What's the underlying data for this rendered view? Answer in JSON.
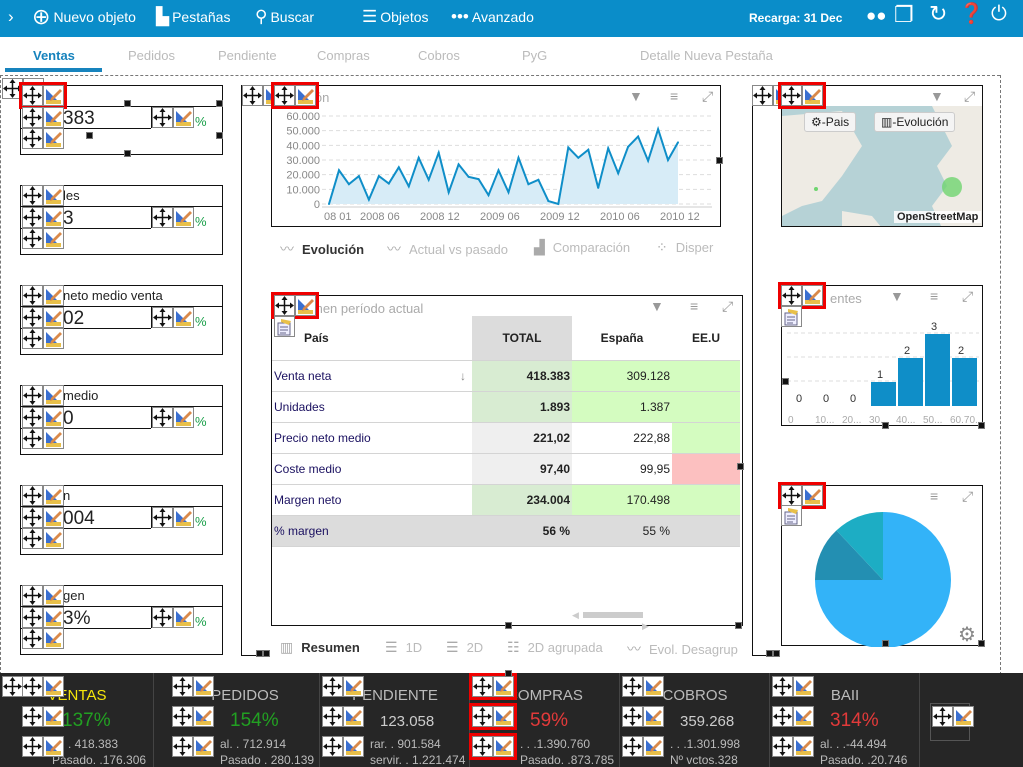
{
  "topbar": {
    "nuevo": "Nuevo objeto",
    "pestanas": "Pestañas",
    "buscar": "Buscar",
    "objetos": "Objetos",
    "avanzado": "Avanzado",
    "recarga": "Recarga: 31 Dec"
  },
  "tabs": [
    "Ventas",
    "Pedidos",
    "Pendiente",
    "Compras",
    "Cobros",
    "PyG",
    "Detalle",
    "Nueva Pestaña"
  ],
  "left_kpis": [
    {
      "title": "",
      "value": "383",
      "pct": "%"
    },
    {
      "title": "les",
      "value": "3",
      "pct": "%"
    },
    {
      "title": "neto medio venta",
      "value": "02",
      "pct": "%"
    },
    {
      "title": "medio",
      "value": "0",
      "pct": "%"
    },
    {
      "title": "n",
      "value": "004",
      "pct": "%"
    },
    {
      "title": "gen",
      "value": "3%",
      "pct": "%"
    }
  ],
  "evolution": {
    "title": "ión",
    "y_ticks": [
      "60.000",
      "50.000",
      "40.000",
      "30.000",
      "20.000",
      "10.000",
      "0"
    ],
    "x_ticks": [
      "08 01",
      "2008 06",
      "2008 12",
      "2009 06",
      "2009 12",
      "2010 06",
      "2010 12"
    ]
  },
  "chart_data": {
    "type": "area",
    "title": "Evolución",
    "x": [
      "2008-01",
      "2008-02",
      "2008-03",
      "2008-04",
      "2008-05",
      "2008-06",
      "2008-07",
      "2008-08",
      "2008-09",
      "2008-10",
      "2008-11",
      "2008-12",
      "2009-01",
      "2009-02",
      "2009-03",
      "2009-04",
      "2009-05",
      "2009-06",
      "2009-07",
      "2009-08",
      "2009-09",
      "2009-10",
      "2009-11",
      "2009-12",
      "2010-01",
      "2010-02",
      "2010-03",
      "2010-04",
      "2010-05",
      "2010-06",
      "2010-07",
      "2010-08",
      "2010-09",
      "2010-10",
      "2010-11",
      "2010-12"
    ],
    "values": [
      0,
      23000,
      13500,
      19000,
      3000,
      19000,
      14000,
      25000,
      12000,
      31500,
      16500,
      35000,
      8000,
      27000,
      18500,
      17000,
      6000,
      23000,
      8000,
      31500,
      13500,
      16500,
      2000,
      -1000,
      38500,
      31500,
      37000,
      11000,
      38000,
      21000,
      39000,
      46000,
      29500,
      51000,
      30000,
      42000
    ],
    "ylim": [
      0,
      60000
    ]
  },
  "evolution_views": [
    "Evolución",
    "Actual vs pasado",
    "Comparación",
    "Disper"
  ],
  "summary": {
    "title": "men período actual",
    "headers": [
      "País",
      "TOTAL",
      "España",
      "EE.U"
    ],
    "rows": [
      [
        "Venta neta",
        "418.383",
        "309.128"
      ],
      [
        "Unidades",
        "1.893",
        "1.387"
      ],
      [
        "Precio neto medio",
        "221,02",
        "222,88"
      ],
      [
        "Coste medio",
        "97,40",
        "99,95"
      ],
      [
        "Margen neto",
        "234.004",
        "170.498"
      ],
      [
        "% margen",
        "56 %",
        "55 %"
      ]
    ]
  },
  "summary_views": [
    "Resumen",
    "1D",
    "2D",
    "2D agrupada",
    "Evol. Desagrup"
  ],
  "map": {
    "btn_pais": "-Pais",
    "btn_evol": "-Evolución",
    "attribution": "OpenStreetMap"
  },
  "histogram": {
    "title": "entes",
    "categories": [
      "0",
      "10...",
      "20...",
      "30...",
      "40...",
      "50...",
      "60.70..."
    ],
    "values": [
      0,
      0,
      0,
      1,
      2,
      3,
      2
    ],
    "labels": [
      "0",
      "0",
      "0",
      "1",
      "2",
      "3",
      "2"
    ]
  },
  "pie": {
    "values": [
      75,
      13,
      12
    ],
    "colors": [
      "#33b3f8",
      "#238fb2",
      "#1dadc4"
    ]
  },
  "bottom_kpis": [
    {
      "title": "VENTAS",
      "value": "137%",
      "color": "#22a022",
      "l1": "al. . 418.383",
      "l2": "Pasado. .176.306"
    },
    {
      "title": "PEDIDOS",
      "value": "154%",
      "color": "#22a022",
      "l1": "al. . 712.914",
      "l2": "Pasado . 280.139"
    },
    {
      "title": "PENDIENTE",
      "value": "123.058",
      "color": "#cccccc",
      "l1": "rar. . 901.584",
      "l2": "servir. . 1.221.474"
    },
    {
      "title": "COMPRAS",
      "value": "59%",
      "color": "#e23a3a",
      "l1": ". . .1.390.760",
      "l2": "Pasado. .873.785"
    },
    {
      "title": "COBROS",
      "value": "359.268",
      "color": "#cccccc",
      "l1": ". . .1.301.998",
      "l2": "Nº vctos.328"
    },
    {
      "title": "BAII",
      "value": "314%",
      "color": "#e23a3a",
      "l1": "al. . .-44.494",
      "l2": "Pasado. .20.746"
    }
  ]
}
